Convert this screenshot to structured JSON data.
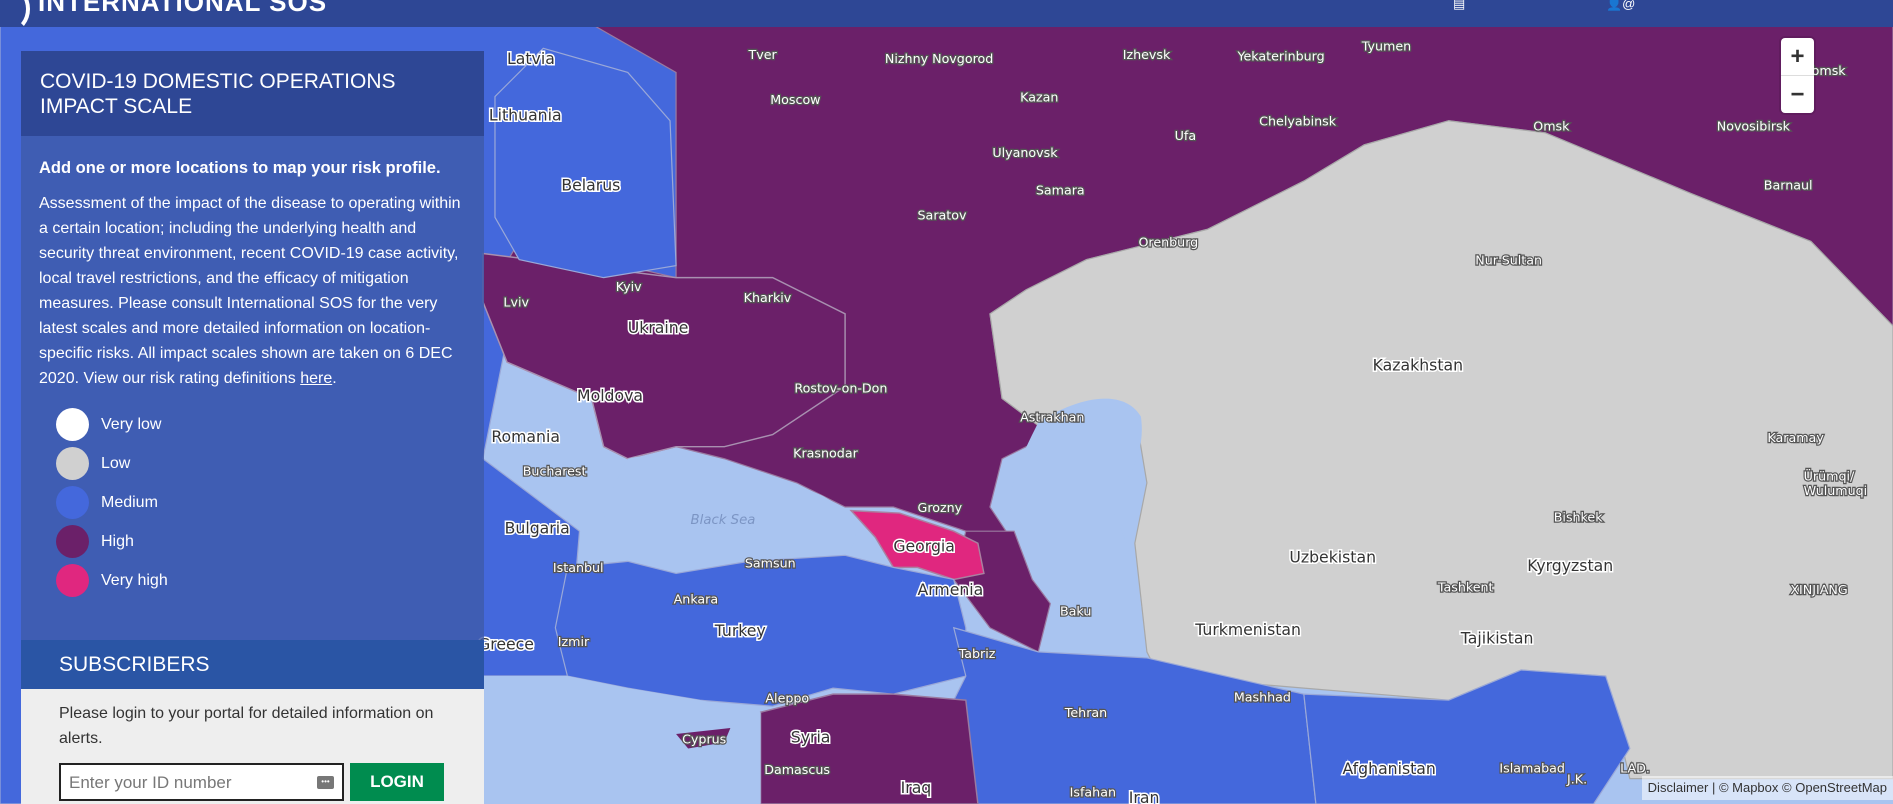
{
  "header": {
    "logo_text": "INTERNATIONAL SOS"
  },
  "colors": {
    "very_low": "#ffffff",
    "low": "#d0d0d0",
    "medium": "#4468dc",
    "high": "#6b2069",
    "very_high": "#e0277f",
    "header": "#2e4795",
    "login": "#008c4f"
  },
  "panel": {
    "title": "COVID-19 DOMESTIC OPERATIONS IMPACT SCALE",
    "lead": "Add one or more locations to map your risk profile.",
    "description": "Assessment of the impact of the disease to operating within a certain location; including the underlying health and security threat environment, recent COVID-19 case activity, local travel restrictions, and the efficacy of mitigation measures. Please consult International SOS for the very latest scales and more detailed information on location-specific risks. All impact scales shown are taken on 6 DEC 2020. View our risk rating definitions ",
    "link_text": "here",
    "link_after": ".",
    "legend": [
      {
        "label": "Very low",
        "color": "#ffffff"
      },
      {
        "label": "Low",
        "color": "#d0d0d0"
      },
      {
        "label": "Medium",
        "color": "#4468dc"
      },
      {
        "label": "High",
        "color": "#6b2069"
      },
      {
        "label": "Very high",
        "color": "#e0277f"
      }
    ]
  },
  "subscribers": {
    "title": "SUBSCRIBERS",
    "text": "Please login to your portal for detailed information on alerts.",
    "id_placeholder": "Enter your ID number",
    "login_label": "LOGIN"
  },
  "zoom": {
    "in": "+",
    "out": "−"
  },
  "attribution": {
    "disclaimer": "Disclaimer",
    "sep": " | ",
    "mapbox": "© Mapbox",
    "osm": "© OpenStreetMap"
  },
  "map_labels": [
    {
      "t": "Latvia",
      "k": "country"
    },
    {
      "t": "Lithuania",
      "k": "country"
    },
    {
      "t": "Belarus",
      "k": "country"
    },
    {
      "t": "Ukraine",
      "k": "country"
    },
    {
      "t": "Moldova",
      "k": "country"
    },
    {
      "t": "Romania",
      "k": "country"
    },
    {
      "t": "Bulgaria",
      "k": "country"
    },
    {
      "t": "Greece",
      "k": "country"
    },
    {
      "t": "Turkey",
      "k": "country"
    },
    {
      "t": "Syria",
      "k": "country"
    },
    {
      "t": "Iraq",
      "k": "country"
    },
    {
      "t": "Iran",
      "k": "country"
    },
    {
      "t": "Afghanistan",
      "k": "country"
    },
    {
      "t": "Turkmenistan",
      "k": "country"
    },
    {
      "t": "Uzbekistan",
      "k": "country"
    },
    {
      "t": "Kazakhstan",
      "k": "country"
    },
    {
      "t": "Kyrgyzstan",
      "k": "country"
    },
    {
      "t": "Tajikistan",
      "k": "country"
    },
    {
      "t": "Georgia",
      "k": "country"
    },
    {
      "t": "Armenia",
      "k": "country"
    },
    {
      "t": "Baku",
      "k": "city"
    },
    {
      "t": "Moscow",
      "k": "city"
    },
    {
      "t": "Tver",
      "k": "city"
    },
    {
      "t": "Nizhny Novgorod",
      "k": "city"
    },
    {
      "t": "Kazan",
      "k": "city"
    },
    {
      "t": "Izhevsk",
      "k": "city"
    },
    {
      "t": "Yekaterinburg",
      "k": "city"
    },
    {
      "t": "Tyumen",
      "k": "city"
    },
    {
      "t": "Tomsk",
      "k": "city"
    },
    {
      "t": "Omsk",
      "k": "city"
    },
    {
      "t": "Novosibirsk",
      "k": "city"
    },
    {
      "t": "Barnaul",
      "k": "city"
    },
    {
      "t": "Ufa",
      "k": "city"
    },
    {
      "t": "Chelyabinsk",
      "k": "city"
    },
    {
      "t": "Ulyanovsk",
      "k": "city"
    },
    {
      "t": "Samara",
      "k": "city"
    },
    {
      "t": "Saratov",
      "k": "city"
    },
    {
      "t": "Orenburg",
      "k": "city"
    },
    {
      "t": "Nur-Sultan",
      "k": "city"
    },
    {
      "t": "Kyiv",
      "k": "city"
    },
    {
      "t": "Kharkiv",
      "k": "city"
    },
    {
      "t": "Lviv",
      "k": "city"
    },
    {
      "t": "Rostov-on-Don",
      "k": "city"
    },
    {
      "t": "Astrakhan",
      "k": "city"
    },
    {
      "t": "Krasnodar",
      "k": "city"
    },
    {
      "t": "Grozny",
      "k": "city"
    },
    {
      "t": "Samsun",
      "k": "city"
    },
    {
      "t": "Istanbul",
      "k": "city"
    },
    {
      "t": "Ankara",
      "k": "city"
    },
    {
      "t": "Izmir",
      "k": "city"
    },
    {
      "t": "Tabriz",
      "k": "city"
    },
    {
      "t": "Aleppo",
      "k": "city"
    },
    {
      "t": "Cyprus",
      "k": "city"
    },
    {
      "t": "Damascus",
      "k": "city"
    },
    {
      "t": "Tehran",
      "k": "city"
    },
    {
      "t": "Mashhad",
      "k": "city"
    },
    {
      "t": "Isfahan",
      "k": "city"
    },
    {
      "t": "Islamabad",
      "k": "city"
    },
    {
      "t": "Bishkek",
      "k": "city"
    },
    {
      "t": "Tashkent",
      "k": "city"
    },
    {
      "t": "Karamay",
      "k": "city"
    },
    {
      "t": "Ürümqi/",
      "k": "city"
    },
    {
      "t": "Wulumuqi",
      "k": "city"
    },
    {
      "t": "XINJIANG",
      "k": "city"
    },
    {
      "t": "Bucharest",
      "k": "city"
    },
    {
      "t": "Black Sea",
      "k": "sea"
    },
    {
      "t": "LAD.",
      "k": "city"
    },
    {
      "t": "J.K.",
      "k": "city"
    }
  ]
}
